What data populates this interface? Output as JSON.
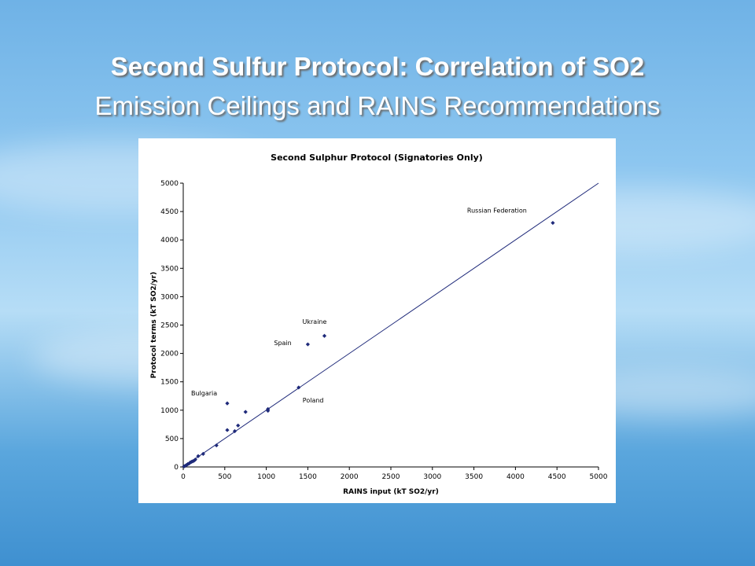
{
  "slide": {
    "title_line_1": "Second Sulfur Protocol: Correlation of SO2",
    "title_line_2": "Emission Ceilings and RAINS Recommendations"
  },
  "colors": {
    "point": "#1f2a7a",
    "diagonal": "#1f2a7a",
    "panel": "#ffffff"
  },
  "chart_data": {
    "type": "scatter",
    "title": "Second Sulphur Protocol (Signatories Only)",
    "xlabel": "RAINS input (kT SO2/yr)",
    "ylabel": "Protocol terms (kT SO2/yr)",
    "xlim": [
      0,
      5000
    ],
    "ylim": [
      0,
      5000
    ],
    "x_ticks": [
      0,
      500,
      1000,
      1500,
      2000,
      2500,
      3000,
      3500,
      4000,
      4500,
      5000
    ],
    "y_ticks": [
      0,
      500,
      1000,
      1500,
      2000,
      2500,
      3000,
      3500,
      4000,
      4500,
      5000
    ],
    "grid": false,
    "reference_line": {
      "from": [
        0,
        0
      ],
      "to": [
        5000,
        5000
      ]
    },
    "series": [
      {
        "points": [
          [
            10,
            10
          ],
          [
            25,
            20
          ],
          [
            40,
            35
          ],
          [
            55,
            50
          ],
          [
            70,
            60
          ],
          [
            85,
            80
          ],
          [
            100,
            90
          ],
          [
            115,
            100
          ],
          [
            130,
            110
          ],
          [
            145,
            130
          ],
          [
            180,
            190
          ],
          [
            240,
            230
          ],
          [
            400,
            380
          ],
          [
            530,
            650
          ],
          [
            530,
            1120
          ],
          [
            620,
            630
          ],
          [
            660,
            730
          ],
          [
            750,
            970
          ],
          [
            1020,
            990
          ],
          [
            1020,
            1020
          ],
          [
            1390,
            1400
          ],
          [
            1500,
            2160
          ],
          [
            1700,
            2310
          ],
          [
            4450,
            4300
          ]
        ]
      }
    ],
    "annotations": [
      {
        "text": "Russian Federation",
        "x": 4450,
        "y": 4300
      },
      {
        "text": "Ukraine",
        "x": 1700,
        "y": 2310
      },
      {
        "text": "Spain",
        "x": 1500,
        "y": 2160
      },
      {
        "text": "Bulgaria",
        "x": 530,
        "y": 1120
      },
      {
        "text": "Poland",
        "x": 1390,
        "y": 1400
      }
    ]
  }
}
